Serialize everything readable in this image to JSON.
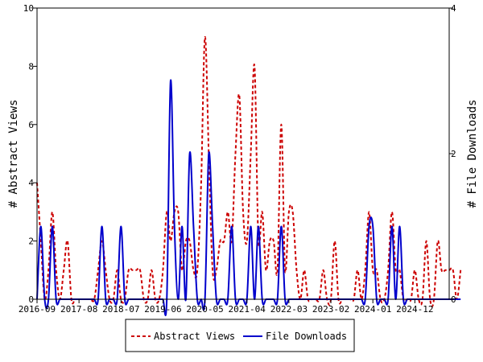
{
  "chart_data": {
    "type": "line",
    "ylabel": "# Abstract Views",
    "y2label": "# File Downloads",
    "ylim": [
      0,
      10
    ],
    "y2lim": [
      0,
      4
    ],
    "xlim": [
      "2016-09",
      "2025-09"
    ],
    "y_ticks": [
      "0",
      "2",
      "4",
      "6",
      "8",
      "10"
    ],
    "y2_ticks": [
      "0",
      "2",
      "4"
    ],
    "x_ticks": [
      "2016-09",
      "2017-08",
      "2018-07",
      "2019-06",
      "2020-05",
      "2021-04",
      "2022-03",
      "2023-02",
      "2024-01",
      "2024-12"
    ],
    "grid": false,
    "legend_position": "bottom",
    "series": [
      {
        "name": "Abstract Views",
        "axis": "left",
        "color": "#cc0000",
        "style": "dashed",
        "points": [
          [
            "2016-09",
            4
          ],
          [
            "2016-10",
            2
          ],
          [
            "2016-11",
            0
          ],
          [
            "2016-12",
            1
          ],
          [
            "2017-01",
            3
          ],
          [
            "2017-02",
            1
          ],
          [
            "2017-03",
            0
          ],
          [
            "2017-04",
            1
          ],
          [
            "2017-05",
            2
          ],
          [
            "2017-06",
            0
          ],
          [
            "2017-07",
            0
          ],
          [
            "2017-08",
            0
          ],
          [
            "2017-09",
            0
          ],
          [
            "2017-10",
            0
          ],
          [
            "2017-11",
            0
          ],
          [
            "2017-12",
            0
          ],
          [
            "2018-01",
            1
          ],
          [
            "2018-02",
            2
          ],
          [
            "2018-03",
            1
          ],
          [
            "2018-04",
            0
          ],
          [
            "2018-05",
            0
          ],
          [
            "2018-06",
            1
          ],
          [
            "2018-07",
            0
          ],
          [
            "2018-08",
            0
          ],
          [
            "2018-09",
            1
          ],
          [
            "2018-10",
            1
          ],
          [
            "2018-11",
            1
          ],
          [
            "2018-12",
            1
          ],
          [
            "2019-01",
            0
          ],
          [
            "2019-02",
            0
          ],
          [
            "2019-03",
            1
          ],
          [
            "2019-04",
            0
          ],
          [
            "2019-05",
            0
          ],
          [
            "2019-06",
            1
          ],
          [
            "2019-07",
            3
          ],
          [
            "2019-08",
            2
          ],
          [
            "2019-09",
            3
          ],
          [
            "2019-10",
            3
          ],
          [
            "2019-11",
            1
          ],
          [
            "2019-12",
            2
          ],
          [
            "2020-01",
            2
          ],
          [
            "2020-02",
            1
          ],
          [
            "2020-03",
            1
          ],
          [
            "2020-04",
            4
          ],
          [
            "2020-05",
            9
          ],
          [
            "2020-06",
            5
          ],
          [
            "2020-07",
            1
          ],
          [
            "2020-08",
            1
          ],
          [
            "2020-09",
            2
          ],
          [
            "2020-10",
            2
          ],
          [
            "2020-11",
            3
          ],
          [
            "2020-12",
            2
          ],
          [
            "2021-01",
            5
          ],
          [
            "2021-02",
            7
          ],
          [
            "2021-03",
            3
          ],
          [
            "2021-04",
            2
          ],
          [
            "2021-05",
            5
          ],
          [
            "2021-06",
            8
          ],
          [
            "2021-07",
            2
          ],
          [
            "2021-08",
            3
          ],
          [
            "2021-09",
            1
          ],
          [
            "2021-10",
            2
          ],
          [
            "2021-11",
            2
          ],
          [
            "2021-12",
            1
          ],
          [
            "2022-01",
            6
          ],
          [
            "2022-02",
            1
          ],
          [
            "2022-03",
            3
          ],
          [
            "2022-04",
            3
          ],
          [
            "2022-05",
            1
          ],
          [
            "2022-06",
            0
          ],
          [
            "2022-07",
            1
          ],
          [
            "2022-08",
            0
          ],
          [
            "2022-09",
            0
          ],
          [
            "2022-10",
            0
          ],
          [
            "2022-11",
            0
          ],
          [
            "2022-12",
            1
          ],
          [
            "2023-01",
            0
          ],
          [
            "2023-02",
            0
          ],
          [
            "2023-03",
            2
          ],
          [
            "2023-04",
            0
          ],
          [
            "2023-05",
            0
          ],
          [
            "2023-06",
            0
          ],
          [
            "2023-07",
            0
          ],
          [
            "2023-08",
            0
          ],
          [
            "2023-09",
            1
          ],
          [
            "2023-10",
            0
          ],
          [
            "2023-11",
            1
          ],
          [
            "2023-12",
            3
          ],
          [
            "2024-01",
            1
          ],
          [
            "2024-02",
            1
          ],
          [
            "2024-03",
            0
          ],
          [
            "2024-04",
            0
          ],
          [
            "2024-05",
            1
          ],
          [
            "2024-06",
            3
          ],
          [
            "2024-07",
            1
          ],
          [
            "2024-08",
            1
          ],
          [
            "2024-09",
            0
          ],
          [
            "2024-10",
            0
          ],
          [
            "2024-11",
            0
          ],
          [
            "2024-12",
            1
          ],
          [
            "2025-01",
            0
          ],
          [
            "2025-02",
            0
          ],
          [
            "2025-03",
            2
          ],
          [
            "2025-04",
            0
          ],
          [
            "2025-05",
            0
          ],
          [
            "2025-06",
            2
          ],
          [
            "2025-07",
            1
          ],
          [
            "2025-08",
            1
          ],
          [
            "2025-09",
            1
          ],
          [
            "2025-10",
            1
          ],
          [
            "2025-11",
            0
          ],
          [
            "2025-12",
            1
          ]
        ]
      },
      {
        "name": "File Downloads",
        "axis": "right",
        "color": "#0000cc",
        "style": "solid",
        "points": [
          [
            "2016-09",
            0
          ],
          [
            "2016-10",
            1
          ],
          [
            "2016-11",
            0
          ],
          [
            "2016-12",
            0
          ],
          [
            "2017-01",
            1
          ],
          [
            "2017-02",
            0
          ],
          [
            "2017-03",
            0
          ],
          [
            "2017-04",
            0
          ],
          [
            "2017-05",
            0
          ],
          [
            "2017-06",
            0
          ],
          [
            "2017-07",
            0
          ],
          [
            "2017-08",
            0
          ],
          [
            "2017-09",
            0
          ],
          [
            "2017-10",
            0
          ],
          [
            "2017-11",
            0
          ],
          [
            "2017-12",
            0
          ],
          [
            "2018-01",
            0
          ],
          [
            "2018-02",
            1
          ],
          [
            "2018-03",
            0
          ],
          [
            "2018-04",
            0
          ],
          [
            "2018-05",
            0
          ],
          [
            "2018-06",
            0
          ],
          [
            "2018-07",
            1
          ],
          [
            "2018-08",
            0
          ],
          [
            "2018-09",
            0
          ],
          [
            "2018-10",
            0
          ],
          [
            "2018-11",
            0
          ],
          [
            "2018-12",
            0
          ],
          [
            "2019-01",
            0
          ],
          [
            "2019-02",
            0
          ],
          [
            "2019-03",
            0
          ],
          [
            "2019-04",
            0
          ],
          [
            "2019-05",
            0
          ],
          [
            "2019-06",
            0
          ],
          [
            "2019-07",
            0
          ],
          [
            "2019-08",
            3
          ],
          [
            "2019-09",
            1
          ],
          [
            "2019-10",
            0
          ],
          [
            "2019-11",
            1
          ],
          [
            "2019-12",
            0
          ],
          [
            "2020-01",
            2
          ],
          [
            "2020-02",
            1
          ],
          [
            "2020-03",
            0
          ],
          [
            "2020-04",
            0
          ],
          [
            "2020-05",
            0
          ],
          [
            "2020-06",
            2
          ],
          [
            "2020-07",
            1
          ],
          [
            "2020-08",
            0
          ],
          [
            "2020-09",
            0
          ],
          [
            "2020-10",
            0
          ],
          [
            "2020-11",
            0
          ],
          [
            "2020-12",
            1
          ],
          [
            "2021-01",
            0
          ],
          [
            "2021-02",
            0
          ],
          [
            "2021-03",
            0
          ],
          [
            "2021-04",
            0
          ],
          [
            "2021-05",
            1
          ],
          [
            "2021-06",
            0
          ],
          [
            "2021-07",
            1
          ],
          [
            "2021-08",
            0
          ],
          [
            "2021-09",
            0
          ],
          [
            "2021-10",
            0
          ],
          [
            "2021-11",
            0
          ],
          [
            "2021-12",
            0
          ],
          [
            "2022-01",
            1
          ],
          [
            "2022-02",
            0
          ],
          [
            "2022-03",
            0
          ],
          [
            "2022-04",
            0
          ],
          [
            "2022-05",
            0
          ],
          [
            "2022-06",
            0
          ],
          [
            "2022-07",
            0
          ],
          [
            "2022-08",
            0
          ],
          [
            "2022-09",
            0
          ],
          [
            "2022-10",
            0
          ],
          [
            "2022-11",
            0
          ],
          [
            "2022-12",
            0
          ],
          [
            "2023-01",
            0
          ],
          [
            "2023-02",
            0
          ],
          [
            "2023-03",
            0
          ],
          [
            "2023-04",
            0
          ],
          [
            "2023-05",
            0
          ],
          [
            "2023-06",
            0
          ],
          [
            "2023-07",
            0
          ],
          [
            "2023-08",
            0
          ],
          [
            "2023-09",
            0
          ],
          [
            "2023-10",
            0
          ],
          [
            "2023-11",
            0
          ],
          [
            "2023-12",
            1
          ],
          [
            "2024-01",
            1
          ],
          [
            "2024-02",
            0
          ],
          [
            "2024-03",
            0
          ],
          [
            "2024-04",
            0
          ],
          [
            "2024-05",
            0
          ],
          [
            "2024-06",
            1
          ],
          [
            "2024-07",
            0
          ],
          [
            "2024-08",
            1
          ],
          [
            "2024-09",
            0
          ],
          [
            "2024-10",
            0
          ],
          [
            "2024-11",
            0
          ],
          [
            "2024-12",
            0
          ],
          [
            "2025-01",
            0
          ],
          [
            "2025-02",
            0
          ],
          [
            "2025-03",
            0
          ],
          [
            "2025-04",
            0
          ],
          [
            "2025-05",
            0
          ],
          [
            "2025-06",
            0
          ],
          [
            "2025-07",
            0
          ],
          [
            "2025-08",
            0
          ],
          [
            "2025-09",
            0
          ],
          [
            "2025-10",
            0
          ],
          [
            "2025-11",
            0
          ],
          [
            "2025-12",
            0
          ]
        ]
      }
    ]
  }
}
